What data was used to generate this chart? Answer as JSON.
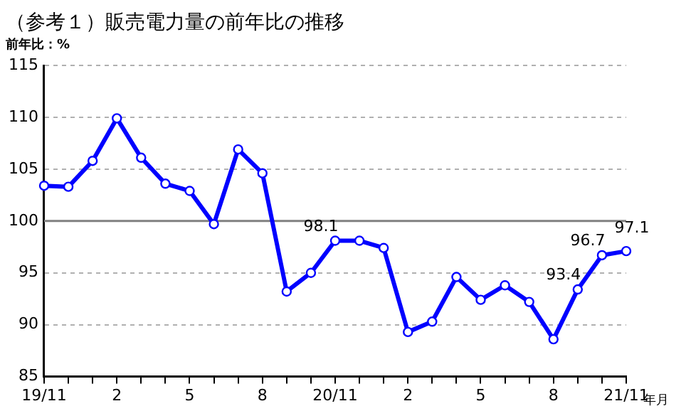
{
  "chart_data": {
    "type": "line",
    "title": "（参考１）販売電力量の前年比の推移",
    "ylabel": "前年比：%",
    "xlabel": "年月",
    "categories": [
      "19/11",
      null,
      null,
      "2",
      null,
      null,
      "5",
      null,
      null,
      "8",
      null,
      null,
      "20/11",
      null,
      null,
      "2",
      null,
      null,
      "5",
      null,
      null,
      "8",
      null,
      null,
      "21/11"
    ],
    "series": [
      {
        "color": "#0000ff",
        "values": [
          103.4,
          103.3,
          105.8,
          109.9,
          106.1,
          103.6,
          102.9,
          99.7,
          106.9,
          104.6,
          93.2,
          95.0,
          98.1,
          98.1,
          97.4,
          89.3,
          90.3,
          94.6,
          92.4,
          93.8,
          92.2,
          88.6,
          93.4,
          96.7,
          97.1
        ],
        "value_labels": [
          null,
          null,
          null,
          null,
          null,
          null,
          null,
          null,
          null,
          null,
          null,
          null,
          "98.1",
          null,
          null,
          null,
          null,
          null,
          null,
          null,
          null,
          null,
          "93.4",
          "96.7",
          "97.1"
        ]
      }
    ],
    "ylim": [
      85,
      115
    ],
    "yticks": [
      85,
      90,
      95,
      100,
      105,
      110,
      115
    ],
    "grid": "y",
    "marker": "circle",
    "line_style": "solid",
    "legend": false,
    "ref_lines": [
      {
        "axis": "y",
        "value": 100,
        "color": "#808080"
      }
    ]
  }
}
